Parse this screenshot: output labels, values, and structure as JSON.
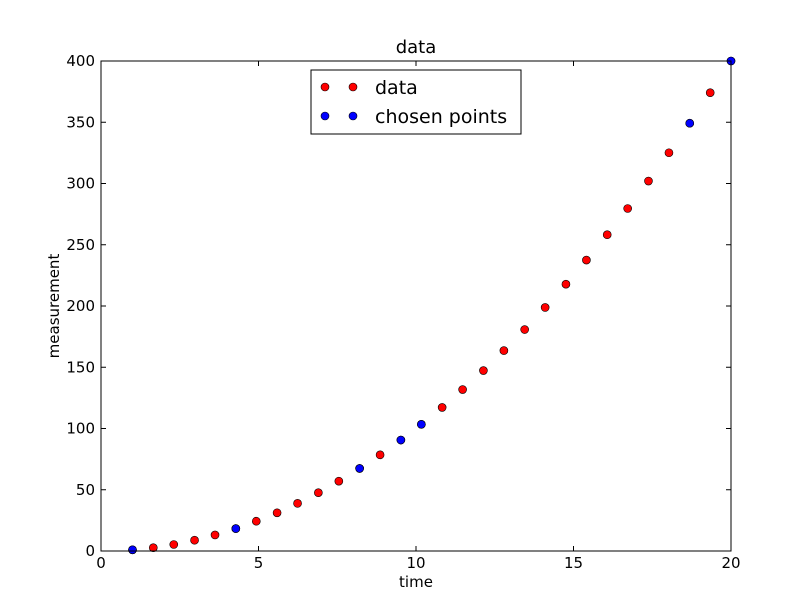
{
  "chart_data": {
    "type": "scatter",
    "title": "data",
    "xlabel": "time",
    "ylabel": "measurement",
    "xlim": [
      0,
      20
    ],
    "ylim": [
      0,
      400
    ],
    "xticks": [
      0,
      5,
      10,
      15,
      20
    ],
    "yticks": [
      0,
      50,
      100,
      150,
      200,
      250,
      300,
      350,
      400
    ],
    "grid": false,
    "legend": {
      "placement": "top-center",
      "entries": [
        "data",
        "chosen points"
      ]
    },
    "series": [
      {
        "name": "data",
        "color": "#ff0000",
        "x": [
          1.0,
          1.66,
          2.31,
          2.97,
          3.62,
          4.28,
          4.93,
          5.59,
          6.24,
          6.9,
          7.55,
          8.21,
          8.86,
          9.52,
          10.17,
          10.83,
          11.48,
          12.14,
          12.79,
          13.45,
          14.1,
          14.76,
          15.41,
          16.07,
          16.72,
          17.38,
          18.03,
          18.69,
          19.34,
          20.0
        ],
        "y": [
          1.0,
          2.7,
          5.3,
          8.8,
          13.1,
          18.3,
          24.3,
          31.2,
          38.9,
          47.6,
          57.0,
          67.4,
          78.5,
          90.6,
          103.4,
          117.2,
          131.8,
          147.3,
          163.6,
          180.8,
          198.8,
          217.8,
          237.5,
          258.2,
          279.6,
          302.0,
          325.1,
          349.2,
          374.1,
          400.0
        ]
      },
      {
        "name": "chosen points",
        "color": "#0000ff",
        "x": [
          1.0,
          4.28,
          8.21,
          9.52,
          10.17,
          18.69,
          20.0
        ],
        "y": [
          1.0,
          18.3,
          67.4,
          90.6,
          103.4,
          349.2,
          400.0
        ]
      }
    ]
  }
}
